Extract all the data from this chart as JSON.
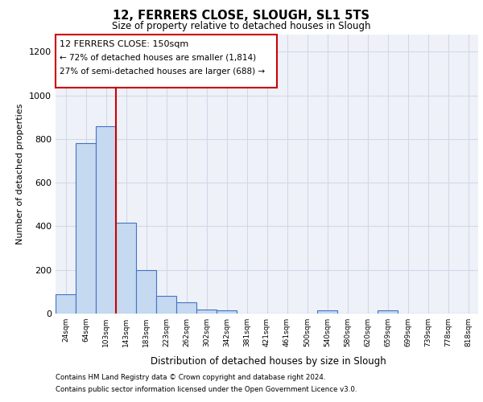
{
  "title1": "12, FERRERS CLOSE, SLOUGH, SL1 5TS",
  "title2": "Size of property relative to detached houses in Slough",
  "xlabel": "Distribution of detached houses by size in Slough",
  "ylabel": "Number of detached properties",
  "categories": [
    "24sqm",
    "64sqm",
    "103sqm",
    "143sqm",
    "183sqm",
    "223sqm",
    "262sqm",
    "302sqm",
    "342sqm",
    "381sqm",
    "421sqm",
    "461sqm",
    "500sqm",
    "540sqm",
    "580sqm",
    "620sqm",
    "659sqm",
    "699sqm",
    "739sqm",
    "778sqm",
    "818sqm"
  ],
  "values": [
    90,
    780,
    860,
    415,
    200,
    80,
    50,
    20,
    15,
    0,
    0,
    0,
    0,
    15,
    0,
    0,
    15,
    0,
    0,
    0,
    0
  ],
  "bar_color": "#c5d9f1",
  "bar_edge_color": "#4472c4",
  "grid_color": "#d0d8e8",
  "bg_color": "#eef2f8",
  "annotation_box_color": "#ffffff",
  "annotation_box_edge": "#cc0000",
  "annotation_line1": "12 FERRERS CLOSE: 150sqm",
  "annotation_line2": "← 72% of detached houses are smaller (1,814)",
  "annotation_line3": "27% of semi-detached houses are larger (688) →",
  "ylim": [
    0,
    1280
  ],
  "yticks": [
    0,
    200,
    400,
    600,
    800,
    1000,
    1200
  ],
  "footnote1": "Contains HM Land Registry data © Crown copyright and database right 2024.",
  "footnote2": "Contains public sector information licensed under the Open Government Licence v3.0."
}
